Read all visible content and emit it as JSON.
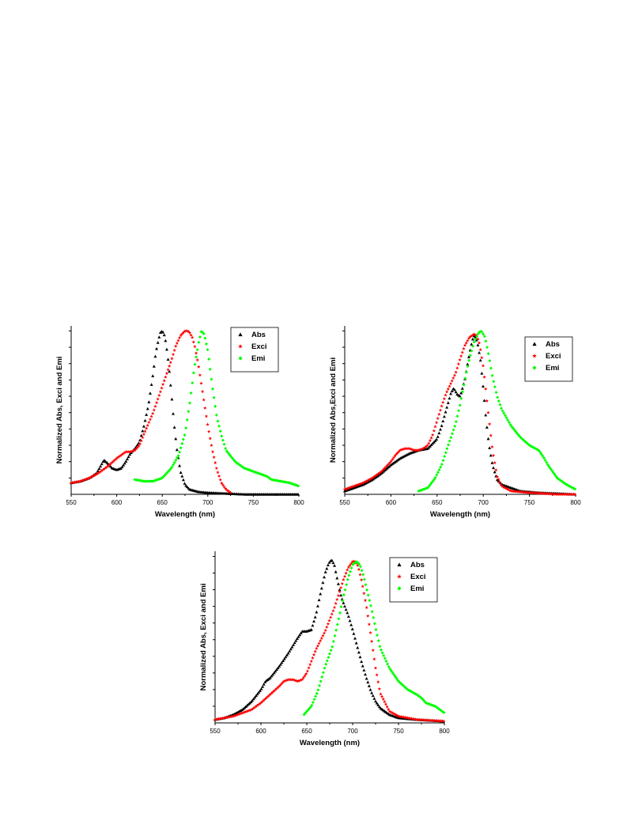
{
  "chart_data": [
    {
      "type": "scatter",
      "xlabel": "Wavelength (nm)",
      "ylabel": "Normalized Abs, Exci and Emi",
      "xlim": [
        550,
        800
      ],
      "ylim": [
        0,
        1.0
      ],
      "x_ticks": [
        "550",
        "600",
        "650",
        "700",
        "750",
        "800"
      ],
      "legend_position": "top-right",
      "series": [
        {
          "name": "Abs",
          "color": "#000000",
          "marker": "triangle",
          "x": [
            550,
            560,
            570,
            578,
            582,
            586,
            590,
            595,
            600,
            605,
            610,
            615,
            620,
            625,
            630,
            635,
            640,
            643,
            646,
            648,
            650,
            652,
            654,
            657,
            660,
            663,
            666,
            670,
            675,
            680,
            690,
            700,
            720,
            740,
            760,
            780,
            800
          ],
          "y": [
            0.07,
            0.08,
            0.1,
            0.13,
            0.17,
            0.21,
            0.19,
            0.16,
            0.15,
            0.16,
            0.2,
            0.25,
            0.28,
            0.32,
            0.42,
            0.55,
            0.74,
            0.87,
            0.95,
            0.99,
            1.0,
            0.98,
            0.93,
            0.8,
            0.62,
            0.43,
            0.28,
            0.14,
            0.06,
            0.03,
            0.015,
            0.01,
            0.005,
            0.0,
            0.0,
            0.0,
            0.0
          ]
        },
        {
          "name": "Exci",
          "color": "#ff0000",
          "marker": "star",
          "x": [
            550,
            560,
            570,
            580,
            590,
            600,
            605,
            610,
            615,
            620,
            625,
            630,
            640,
            650,
            660,
            665,
            670,
            675,
            678,
            680,
            683,
            686,
            690,
            695,
            700,
            705,
            710,
            715,
            720,
            725
          ],
          "y": [
            0.07,
            0.08,
            0.1,
            0.13,
            0.17,
            0.22,
            0.24,
            0.26,
            0.26,
            0.27,
            0.3,
            0.37,
            0.5,
            0.66,
            0.82,
            0.91,
            0.97,
            1.0,
            1.0,
            0.99,
            0.96,
            0.9,
            0.78,
            0.6,
            0.42,
            0.27,
            0.15,
            0.07,
            0.03,
            0.01
          ]
        },
        {
          "name": "Emi",
          "color": "#00ff00",
          "marker": "diamond",
          "x": [
            620,
            630,
            640,
            650,
            660,
            668,
            675,
            680,
            685,
            690,
            693,
            696,
            700,
            705,
            710,
            715,
            720,
            730,
            740,
            750,
            760,
            765,
            770,
            780,
            790,
            800
          ],
          "y": [
            0.09,
            0.08,
            0.08,
            0.1,
            0.16,
            0.24,
            0.37,
            0.55,
            0.77,
            0.93,
            1.0,
            0.98,
            0.88,
            0.66,
            0.47,
            0.36,
            0.27,
            0.2,
            0.16,
            0.14,
            0.12,
            0.11,
            0.09,
            0.08,
            0.07,
            0.05
          ]
        }
      ]
    },
    {
      "type": "scatter",
      "xlabel": "Wavelength (nm)",
      "ylabel": "Normalized Abs,Exci and Emi",
      "xlim": [
        550,
        800
      ],
      "ylim": [
        0,
        1.0
      ],
      "x_ticks": [
        "550",
        "600",
        "650",
        "700",
        "750",
        "800"
      ],
      "legend_position": "top-right",
      "series": [
        {
          "name": "Abs",
          "color": "#000000",
          "marker": "triangle",
          "x": [
            550,
            560,
            570,
            580,
            590,
            600,
            610,
            620,
            630,
            640,
            650,
            655,
            660,
            665,
            668,
            672,
            675,
            680,
            685,
            688,
            690,
            692,
            694,
            697,
            700,
            703,
            706,
            710,
            715,
            720,
            730,
            740,
            760,
            780,
            800
          ],
          "y": [
            0.02,
            0.04,
            0.06,
            0.09,
            0.13,
            0.18,
            0.22,
            0.25,
            0.27,
            0.28,
            0.34,
            0.42,
            0.52,
            0.62,
            0.65,
            0.61,
            0.6,
            0.7,
            0.86,
            0.94,
            0.97,
            0.96,
            0.92,
            0.82,
            0.65,
            0.46,
            0.31,
            0.18,
            0.09,
            0.06,
            0.04,
            0.02,
            0.01,
            0.005,
            0.0
          ]
        },
        {
          "name": "Exci",
          "color": "#ff0000",
          "marker": "star",
          "x": [
            550,
            560,
            570,
            580,
            590,
            600,
            605,
            610,
            615,
            620,
            625,
            630,
            635,
            640,
            645,
            650,
            655,
            660,
            665,
            670,
            675,
            680,
            685,
            690,
            693,
            696,
            700,
            705,
            710,
            715,
            720,
            730,
            750,
            780,
            800
          ],
          "y": [
            0.03,
            0.05,
            0.07,
            0.1,
            0.14,
            0.2,
            0.24,
            0.27,
            0.28,
            0.28,
            0.27,
            0.27,
            0.28,
            0.3,
            0.36,
            0.45,
            0.54,
            0.62,
            0.68,
            0.74,
            0.83,
            0.91,
            0.96,
            0.98,
            0.97,
            0.92,
            0.78,
            0.52,
            0.27,
            0.11,
            0.05,
            0.02,
            0.01,
            0.0,
            0.0
          ]
        },
        {
          "name": "Emi",
          "color": "#00ff00",
          "marker": "diamond",
          "x": [
            630,
            640,
            648,
            655,
            662,
            670,
            675,
            680,
            685,
            690,
            695,
            698,
            702,
            706,
            710,
            715,
            720,
            730,
            740,
            750,
            760,
            765,
            770,
            780,
            790,
            800
          ],
          "y": [
            0.02,
            0.04,
            0.1,
            0.18,
            0.3,
            0.43,
            0.55,
            0.7,
            0.83,
            0.93,
            0.99,
            1.0,
            0.96,
            0.85,
            0.72,
            0.6,
            0.52,
            0.42,
            0.35,
            0.3,
            0.27,
            0.23,
            0.18,
            0.1,
            0.06,
            0.03
          ]
        }
      ]
    },
    {
      "type": "scatter",
      "xlabel": "Wavelength (nm)",
      "ylabel": "Normalized Abs, Exci and Emi",
      "xlim": [
        550,
        800
      ],
      "ylim": [
        0,
        1.0
      ],
      "x_ticks": [
        "550",
        "600",
        "650",
        "700",
        "750",
        "800"
      ],
      "legend_position": "top-right",
      "series": [
        {
          "name": "Abs",
          "color": "#000000",
          "marker": "triangle",
          "x": [
            550,
            560,
            570,
            580,
            590,
            600,
            605,
            610,
            620,
            630,
            640,
            645,
            650,
            655,
            660,
            665,
            670,
            674,
            677,
            680,
            683,
            687,
            690,
            695,
            700,
            705,
            710,
            715,
            720,
            725,
            730,
            740,
            750,
            770,
            800
          ],
          "y": [
            0.02,
            0.03,
            0.05,
            0.08,
            0.13,
            0.2,
            0.25,
            0.27,
            0.34,
            0.42,
            0.51,
            0.55,
            0.55,
            0.56,
            0.65,
            0.78,
            0.9,
            0.96,
            0.98,
            0.95,
            0.87,
            0.77,
            0.72,
            0.65,
            0.56,
            0.46,
            0.36,
            0.27,
            0.19,
            0.13,
            0.09,
            0.05,
            0.03,
            0.02,
            0.01
          ]
        },
        {
          "name": "Exci",
          "color": "#ff0000",
          "marker": "star",
          "x": [
            550,
            560,
            570,
            580,
            590,
            600,
            610,
            620,
            625,
            630,
            635,
            640,
            645,
            650,
            655,
            660,
            670,
            680,
            690,
            695,
            700,
            703,
            706,
            710,
            715,
            720,
            725,
            730,
            740,
            750,
            770,
            800
          ],
          "y": [
            0.02,
            0.03,
            0.04,
            0.06,
            0.08,
            0.12,
            0.17,
            0.22,
            0.25,
            0.26,
            0.26,
            0.25,
            0.26,
            0.3,
            0.37,
            0.44,
            0.55,
            0.69,
            0.86,
            0.93,
            0.97,
            0.97,
            0.94,
            0.85,
            0.7,
            0.52,
            0.33,
            0.18,
            0.07,
            0.04,
            0.02,
            0.01
          ]
        },
        {
          "name": "Emi",
          "color": "#00ff00",
          "marker": "diamond",
          "x": [
            647,
            655,
            662,
            670,
            678,
            685,
            690,
            695,
            700,
            704,
            708,
            712,
            716,
            720,
            725,
            730,
            740,
            750,
            760,
            770,
            775,
            780,
            790,
            800
          ],
          "y": [
            0.05,
            0.1,
            0.19,
            0.34,
            0.46,
            0.63,
            0.76,
            0.87,
            0.95,
            0.97,
            0.95,
            0.88,
            0.79,
            0.7,
            0.57,
            0.45,
            0.33,
            0.25,
            0.2,
            0.17,
            0.15,
            0.12,
            0.1,
            0.06
          ]
        }
      ]
    }
  ]
}
